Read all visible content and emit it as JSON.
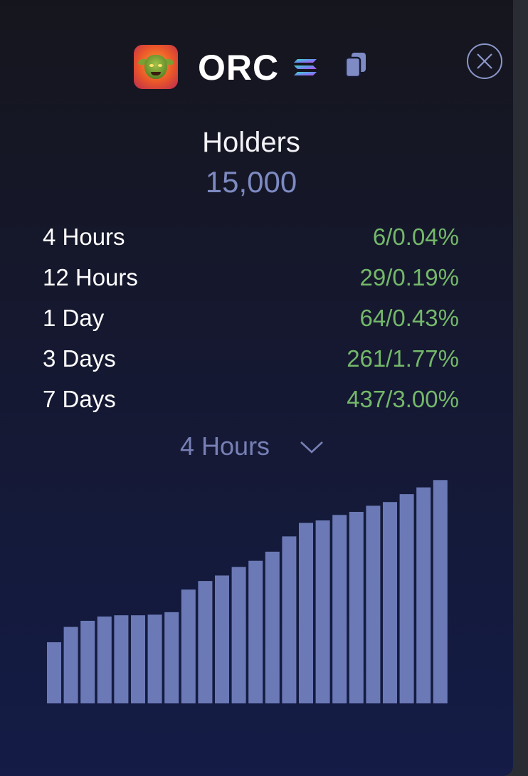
{
  "token": {
    "name": "ORC",
    "icons": [
      "orc-avatar",
      "solana-icon",
      "copy-icon",
      "close-icon"
    ]
  },
  "holders": {
    "title": "Holders",
    "count": "15,000"
  },
  "stats": [
    {
      "label": "4 Hours",
      "value": "6/0.04%"
    },
    {
      "label": "12 Hours",
      "value": "29/0.19%"
    },
    {
      "label": "1 Day",
      "value": "64/0.43%"
    },
    {
      "label": "3 Days",
      "value": "261/1.77%"
    },
    {
      "label": "7 Days",
      "value": "437/3.00%"
    }
  ],
  "period_select": {
    "selected": "4 Hours"
  },
  "colors": {
    "accent": "#7d8ac2",
    "positive": "#74b86a",
    "bar": "#6b7ab6"
  },
  "chart_data": {
    "type": "bar",
    "title": "",
    "xlabel": "",
    "ylabel": "",
    "values": [
      10,
      12.5,
      13.5,
      14.2,
      14.4,
      14.4,
      14.5,
      14.9,
      18.6,
      20,
      20.9,
      22.3,
      23.3,
      24.8,
      27.3,
      29.5,
      29.9,
      30.8,
      31.3,
      32.3,
      32.9,
      34.2,
      35.3,
      36.5
    ],
    "ylim": [
      0,
      37
    ]
  }
}
